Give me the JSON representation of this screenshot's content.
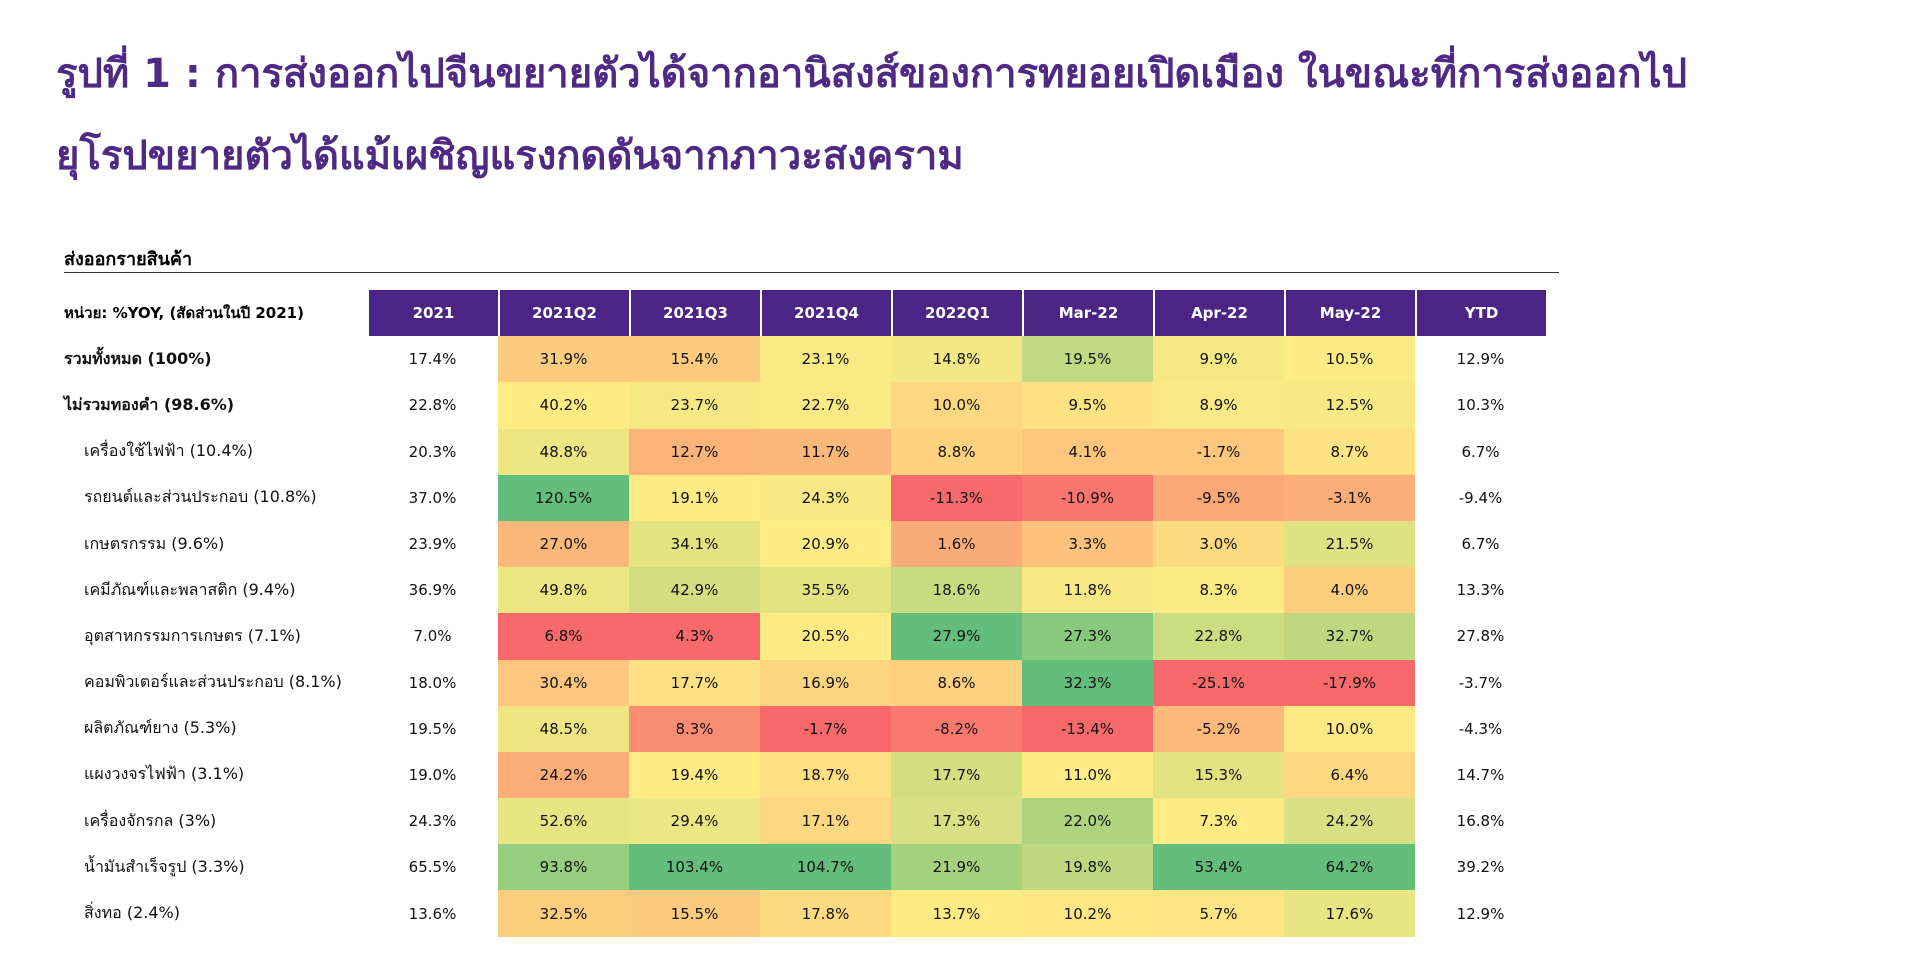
{
  "title_line1": "รูปที่ 1 : การส่งออกไปจีนขยายตัวได้จากอานิสงส์ของการทยอยเปิดเมือง ในขณะที่การส่งออกไป",
  "title_line2": "ยุโรปขยายตัวได้แม้เผชิญแรงกดดันจากภาวะสงคราม",
  "section_label": "ส่งออกรายสินค้า",
  "chart_data": {
    "type": "heatmap",
    "unit_label": "หน่วย: %YOY, (สัดส่วนในปี 2021)",
    "columns": [
      "2021",
      "2021Q2",
      "2021Q3",
      "2021Q4",
      "2022Q1",
      "Mar-22",
      "Apr-22",
      "May-22",
      "YTD"
    ],
    "colored_columns": [
      "2021Q2",
      "2021Q3",
      "2021Q4",
      "2022Q1",
      "Mar-22",
      "Apr-22",
      "May-22"
    ],
    "rows": [
      {
        "label": "รวมทั้งหมด (100%)",
        "bold": true,
        "values": [
          "17.4%",
          "31.9%",
          "15.4%",
          "23.1%",
          "14.8%",
          "19.5%",
          "9.9%",
          "10.5%",
          "12.9%"
        ]
      },
      {
        "label": "ไม่รวมทองคำ (98.6%)",
        "bold": true,
        "values": [
          "22.8%",
          "40.2%",
          "23.7%",
          "22.7%",
          "10.0%",
          "9.5%",
          "8.9%",
          "12.5%",
          "10.3%"
        ]
      },
      {
        "label": "เครื่องใช้ไฟฟ้า (10.4%)",
        "values": [
          "20.3%",
          "48.8%",
          "12.7%",
          "11.7%",
          "8.8%",
          "4.1%",
          "-1.7%",
          "8.7%",
          "6.7%"
        ]
      },
      {
        "label": "รถยนต์และส่วนประกอบ (10.8%)",
        "values": [
          "37.0%",
          "120.5%",
          "19.1%",
          "24.3%",
          "-11.3%",
          "-10.9%",
          "-9.5%",
          "-3.1%",
          "-9.4%"
        ]
      },
      {
        "label": "เกษตรกรรม (9.6%)",
        "values": [
          "23.9%",
          "27.0%",
          "34.1%",
          "20.9%",
          "1.6%",
          "3.3%",
          "3.0%",
          "21.5%",
          "6.7%"
        ]
      },
      {
        "label": "เคมีภัณฑ์และพลาสติก (9.4%)",
        "values": [
          "36.9%",
          "49.8%",
          "42.9%",
          "35.5%",
          "18.6%",
          "11.8%",
          "8.3%",
          "4.0%",
          "13.3%"
        ]
      },
      {
        "label": "อุตสาหกรรมการเกษตร (7.1%)",
        "values": [
          "7.0%",
          "6.8%",
          "4.3%",
          "20.5%",
          "27.9%",
          "27.3%",
          "22.8%",
          "32.7%",
          "27.8%"
        ]
      },
      {
        "label": "คอมพิวเตอร์และส่วนประกอบ (8.1%)",
        "values": [
          "18.0%",
          "30.4%",
          "17.7%",
          "16.9%",
          "8.6%",
          "32.3%",
          "-25.1%",
          "-17.9%",
          "-3.7%"
        ]
      },
      {
        "label": "ผลิตภัณฑ์ยาง (5.3%)",
        "values": [
          "19.5%",
          "48.5%",
          "8.3%",
          "-1.7%",
          "-8.2%",
          "-13.4%",
          "-5.2%",
          "10.0%",
          "-4.3%"
        ]
      },
      {
        "label": "แผงวงจรไฟฟ้า (3.1%)",
        "values": [
          "19.0%",
          "24.2%",
          "19.4%",
          "18.7%",
          "17.7%",
          "11.0%",
          "15.3%",
          "6.4%",
          "14.7%"
        ]
      },
      {
        "label": "เครื่องจักรกล (3%)",
        "values": [
          "24.3%",
          "52.6%",
          "29.4%",
          "17.1%",
          "17.3%",
          "22.0%",
          "7.3%",
          "24.2%",
          "16.8%"
        ]
      },
      {
        "label": "น้ำมันสำเร็จรูป (3.3%)",
        "values": [
          "65.5%",
          "93.8%",
          "103.4%",
          "104.7%",
          "21.9%",
          "19.8%",
          "53.4%",
          "64.2%",
          "39.2%"
        ]
      },
      {
        "label": "สิ่งทอ (2.4%)",
        "values": [
          "13.6%",
          "32.5%",
          "15.5%",
          "17.8%",
          "13.7%",
          "10.2%",
          "5.7%",
          "17.6%",
          "12.9%"
        ]
      }
    ],
    "color_scale": {
      "low": "#f8696b",
      "mid": "#ffeb84",
      "high": "#63be7b"
    }
  }
}
